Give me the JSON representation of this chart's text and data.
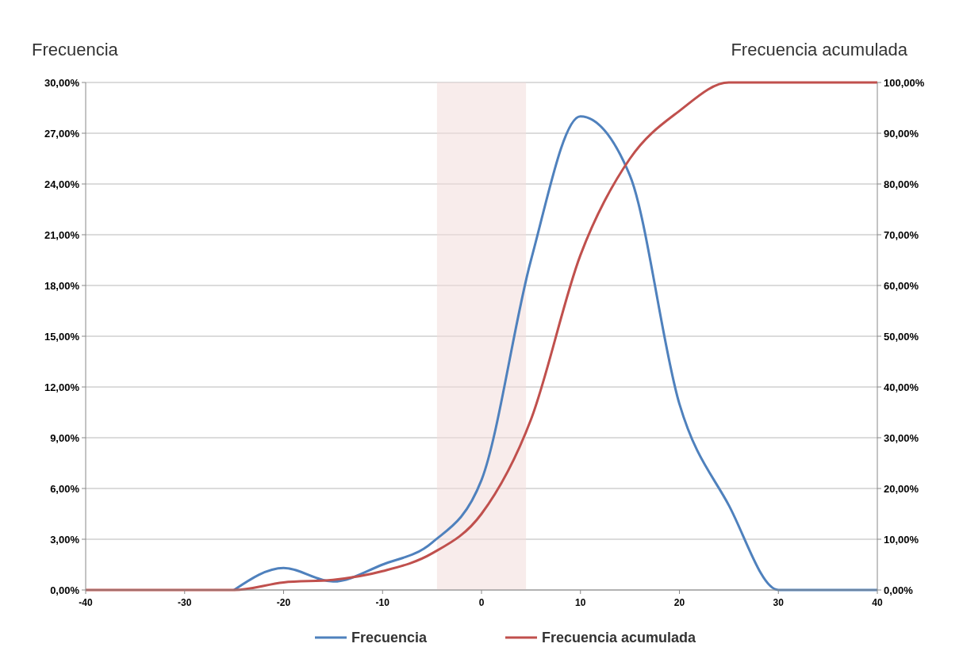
{
  "chart_data": {
    "type": "line",
    "ylabel": "Frecuencia",
    "y2label": "Frecuencia acumulada",
    "x": [
      -40,
      -35,
      -30,
      -25,
      -20,
      -15,
      -10,
      -5,
      0,
      5,
      10,
      15,
      20,
      25,
      30,
      35,
      40
    ],
    "series": [
      {
        "name": "Frecuencia",
        "color": "#4f81bd",
        "values": [
          null,
          null,
          null,
          0,
          1.3,
          0.5,
          1.5,
          2.8,
          6.5,
          19.5,
          28,
          24.5,
          11,
          5,
          0,
          0,
          0
        ]
      },
      {
        "name": "Frecuencia acumulada",
        "color": "#c0504d",
        "axis": "y2",
        "values": [
          0,
          0,
          0,
          0,
          1.5,
          2,
          3.7,
          7.2,
          15,
          33.6,
          66,
          85,
          94.4,
          100,
          100,
          100,
          100
        ]
      }
    ],
    "xlim": [
      -40,
      40
    ],
    "xticks": [
      -40,
      -30,
      -20,
      -10,
      0,
      10,
      20,
      30,
      40
    ],
    "ylim": [
      0,
      30
    ],
    "yticks": [
      {
        "value": 0,
        "label": "0,00%"
      },
      {
        "value": 3,
        "label": "3,00%"
      },
      {
        "value": 6,
        "label": "6,00%"
      },
      {
        "value": 9,
        "label": "9,00%"
      },
      {
        "value": 12,
        "label": "12,00%"
      },
      {
        "value": 15,
        "label": "15,00%"
      },
      {
        "value": 18,
        "label": "18,00%"
      },
      {
        "value": 21,
        "label": "21,00%"
      },
      {
        "value": 24,
        "label": "24,00%"
      },
      {
        "value": 27,
        "label": "27,00%"
      },
      {
        "value": 30,
        "label": "30,00%"
      }
    ],
    "y2lim": [
      0,
      100
    ],
    "y2ticks": [
      {
        "value": 0,
        "label": "0,00%"
      },
      {
        "value": 10,
        "label": "10,00%"
      },
      {
        "value": 20,
        "label": "20,00%"
      },
      {
        "value": 30,
        "label": "30,00%"
      },
      {
        "value": 40,
        "label": "40,00%"
      },
      {
        "value": 50,
        "label": "50,00%"
      },
      {
        "value": 60,
        "label": "60,00%"
      },
      {
        "value": 70,
        "label": "70,00%"
      },
      {
        "value": 80,
        "label": "80,00%"
      },
      {
        "value": 90,
        "label": "90,00%"
      },
      {
        "value": 100,
        "label": "100,00%"
      }
    ],
    "bands": [
      {
        "axis": "x",
        "from": -4.5,
        "to": 4.5,
        "color": "#f2dcdb"
      }
    ],
    "grid": "y",
    "legend": "bottom",
    "marker": "none",
    "line_style": "solid"
  }
}
